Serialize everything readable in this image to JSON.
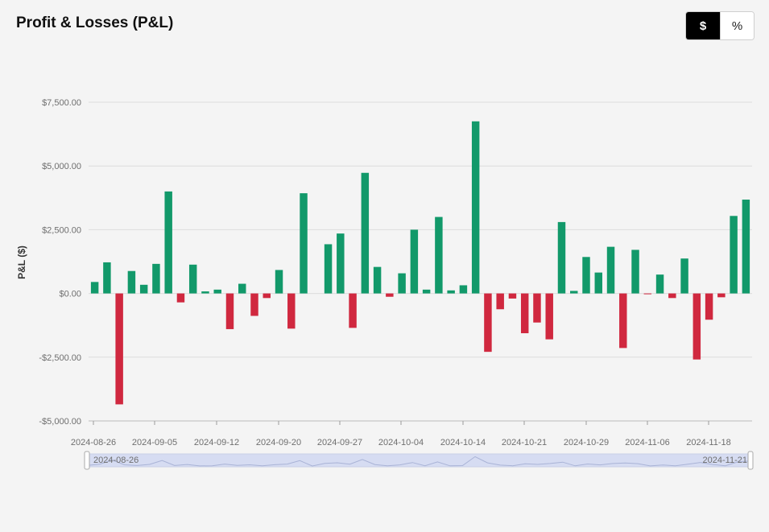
{
  "header": {
    "title": "Profit & Losses (P&L)"
  },
  "toggle": {
    "options": [
      "$",
      "%"
    ],
    "active": "$"
  },
  "colors": {
    "positive": "#12996a",
    "negative": "#d0283f",
    "grid": "#dcdcdc",
    "zoom_fill": "#d6dcf2",
    "zoom_line": "#a9b3d6"
  },
  "chart_data": {
    "type": "bar",
    "ylabel": "P&L ($)",
    "ylim": [
      -5000,
      7500
    ],
    "y_ticks": [
      7500,
      5000,
      2500,
      0,
      -2500,
      -5000
    ],
    "y_tick_labels": [
      "$7,500.00",
      "$5,000.00",
      "$2,500.00",
      "$0.00",
      "-$2,500.00",
      "-$5,000.00"
    ],
    "x_tick_labels": [
      "2024-08-26",
      "2024-09-05",
      "2024-09-12",
      "2024-09-20",
      "2024-09-27",
      "2024-10-04",
      "2024-10-14",
      "2024-10-21",
      "2024-10-29",
      "2024-11-06",
      "2024-11-18"
    ],
    "values": [
      450,
      1220,
      -4350,
      880,
      340,
      1160,
      4000,
      -350,
      1130,
      80,
      150,
      -1400,
      380,
      -880,
      -180,
      920,
      -1380,
      3930,
      0,
      1930,
      2350,
      -1350,
      4730,
      1040,
      -130,
      790,
      2500,
      150,
      3000,
      120,
      320,
      6750,
      -2290,
      -620,
      -200,
      -1560,
      -1140,
      -1800,
      2800,
      100,
      1430,
      820,
      1830,
      -2140,
      1710,
      -30,
      740,
      -180,
      1370,
      -2590,
      -1030,
      -150,
      3040,
      3680
    ],
    "grid": true,
    "dataZoom": {
      "start_label": "2024-08-26",
      "end_label": "2024-11-21"
    }
  }
}
